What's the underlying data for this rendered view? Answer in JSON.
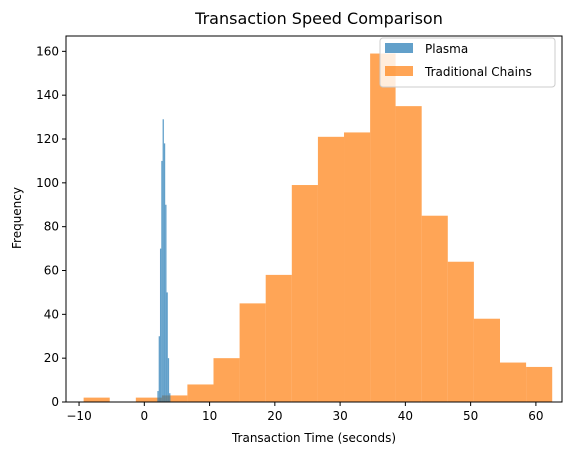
{
  "chart_data": {
    "type": "bar",
    "title": "Transaction Speed Comparison",
    "xlabel": "Transaction Time (seconds)",
    "ylabel": "Frequency",
    "xlim": [
      -12,
      64
    ],
    "ylim": [
      0,
      167
    ],
    "x_ticks": [
      -10,
      0,
      10,
      20,
      30,
      40,
      50,
      60
    ],
    "y_ticks": [
      0,
      20,
      40,
      60,
      80,
      100,
      120,
      140,
      160
    ],
    "grid": false,
    "legend_position": "top-right",
    "series": [
      {
        "name": "Plasma",
        "color": "#1f77b4",
        "alpha": 0.7,
        "bin_edges": [
          2.0,
          2.2,
          2.4,
          2.6,
          2.8,
          3.0,
          3.2,
          3.4,
          3.6,
          3.8,
          4.0
        ],
        "values": [
          5,
          30,
          70,
          110,
          129,
          118,
          90,
          50,
          20,
          4
        ]
      },
      {
        "name": "Traditional Chains",
        "color": "#ff7f0e",
        "alpha": 0.7,
        "bin_edges": [
          -9.3,
          -5.3,
          -1.3,
          2.7,
          6.6,
          10.6,
          14.6,
          18.6,
          22.6,
          26.6,
          30.6,
          34.6,
          38.5,
          42.5,
          46.5,
          50.5,
          54.5,
          58.5,
          62.5
        ],
        "values": [
          2,
          0,
          2,
          3,
          8,
          20,
          45,
          58,
          99,
          121,
          123,
          159,
          135,
          85,
          64,
          38,
          18,
          16
        ]
      }
    ]
  }
}
